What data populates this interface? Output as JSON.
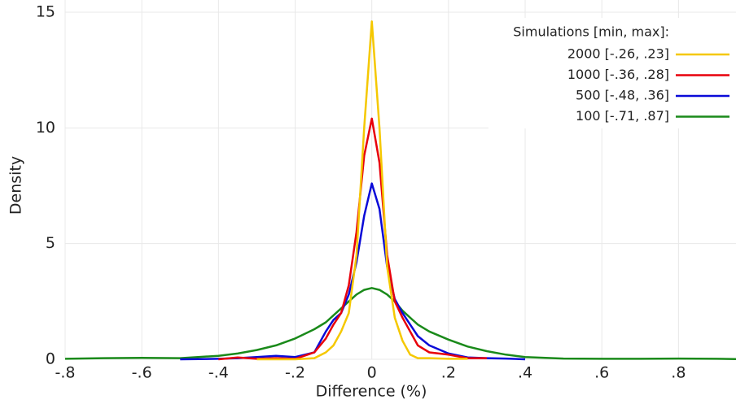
{
  "chart_data": {
    "type": "line",
    "x_label": "Difference (%)",
    "y_label": "Density",
    "legend_title": "Simulations [min, max]:",
    "legend_position": "upper right",
    "grid": true,
    "x": [
      -0.8,
      -0.7,
      -0.6,
      -0.5,
      -0.4,
      -0.35,
      -0.3,
      -0.25,
      -0.2,
      -0.15,
      -0.12,
      -0.1,
      -0.08,
      -0.06,
      -0.04,
      -0.02,
      0,
      0.02,
      0.04,
      0.06,
      0.08,
      0.1,
      0.12,
      0.15,
      0.2,
      0.25,
      0.3,
      0.35,
      0.4,
      0.5,
      0.6,
      0.7,
      0.8,
      0.9,
      0.95
    ],
    "series": [
      {
        "name": "2000 [-.26, .23]",
        "color": "#f5c800",
        "values": [
          null,
          null,
          null,
          null,
          null,
          null,
          0.0,
          0.0,
          0.0,
          0.05,
          0.3,
          0.6,
          1.2,
          2.0,
          4.5,
          10,
          14.6,
          10,
          4.0,
          1.8,
          0.8,
          0.2,
          0.05,
          0.05,
          0.02,
          0.02,
          null,
          null,
          null,
          null,
          null,
          null,
          null,
          null,
          null
        ]
      },
      {
        "name": "1000 [-.36, .28]",
        "color": "#e8000b",
        "values": [
          null,
          null,
          null,
          null,
          0.0,
          0.08,
          0.02,
          0.05,
          0.02,
          0.3,
          0.9,
          1.5,
          2.0,
          3.2,
          5.5,
          8.8,
          10.4,
          8.5,
          4.5,
          2.5,
          1.8,
          1.2,
          0.6,
          0.3,
          0.2,
          0.05,
          0.05,
          null,
          null,
          null,
          null,
          null,
          null,
          null,
          null
        ]
      },
      {
        "name": "500 [-.48, .36]",
        "color": "#0a0ad8",
        "values": [
          null,
          null,
          null,
          0.0,
          0.02,
          0.05,
          0.1,
          0.15,
          0.1,
          0.3,
          1.2,
          1.7,
          2.0,
          2.8,
          4.2,
          6.2,
          7.6,
          6.5,
          4.0,
          2.6,
          2.0,
          1.5,
          1.0,
          0.6,
          0.25,
          0.08,
          0.05,
          0.03,
          0.0,
          null,
          null,
          null,
          null,
          null,
          null
        ]
      },
      {
        "name": "100 [-.71, .87]",
        "color": "#1a8a1a",
        "values": [
          0.02,
          0.05,
          0.06,
          0.05,
          0.15,
          0.25,
          0.4,
          0.6,
          0.9,
          1.3,
          1.6,
          1.9,
          2.2,
          2.5,
          2.8,
          3.0,
          3.08,
          3.0,
          2.8,
          2.5,
          2.1,
          1.8,
          1.5,
          1.2,
          0.85,
          0.55,
          0.35,
          0.2,
          0.1,
          0.03,
          0.02,
          0.02,
          0.03,
          0.02,
          0.01
        ]
      }
    ],
    "xlim": [
      -0.8,
      0.95
    ],
    "xticks": [
      {
        "value": -0.8,
        "label": "-.8"
      },
      {
        "value": -0.6,
        "label": "-.6"
      },
      {
        "value": -0.4,
        "label": "-.4"
      },
      {
        "value": -0.2,
        "label": "-.2"
      },
      0,
      {
        "value": 0.2,
        "label": ".2"
      },
      {
        "value": 0.4,
        "label": ".4"
      },
      {
        "value": 0.6,
        "label": ".6"
      },
      {
        "value": 0.8,
        "label": ".8"
      }
    ],
    "ylim": [
      0,
      15
    ],
    "yticks": [
      0,
      5,
      10,
      15
    ]
  }
}
